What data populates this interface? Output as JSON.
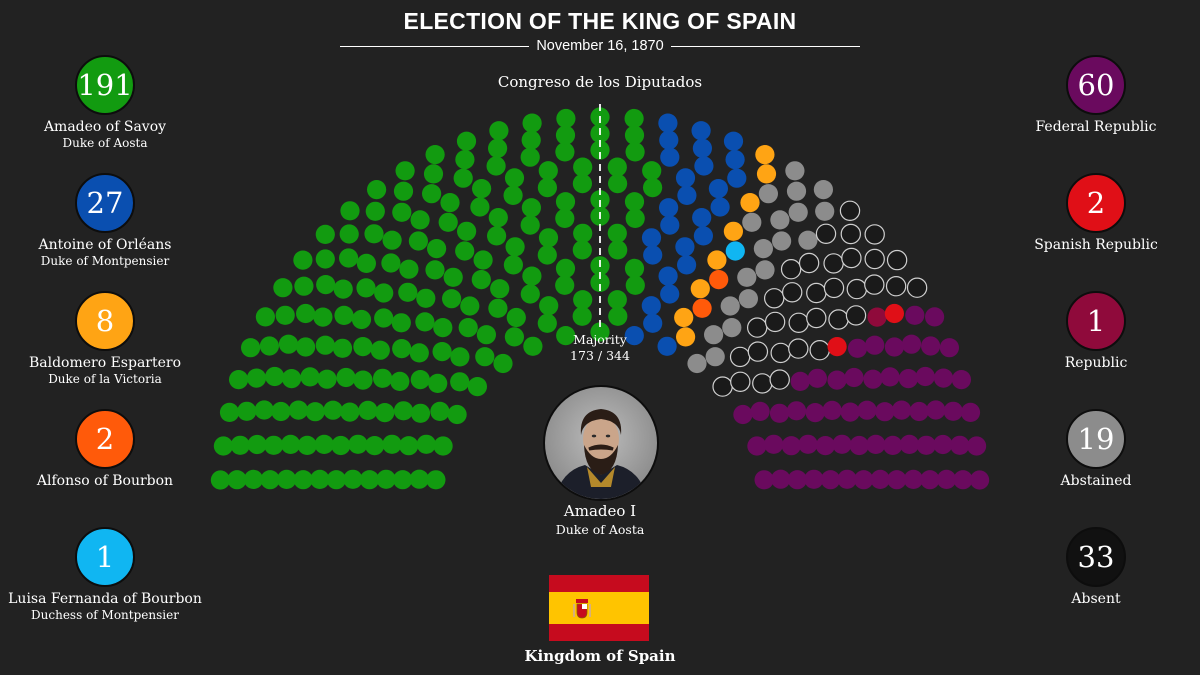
{
  "header": {
    "title": "ELECTION OF THE KING OF SPAIN",
    "date": "November 16, 1870"
  },
  "chart_data": {
    "type": "parliament",
    "title": "Congreso de los Diputados",
    "majority_label": "Majority",
    "majority_value": "173 / 344",
    "total_seats": 344,
    "rows": 14,
    "series": [
      {
        "name": "Amadeo of Savoy",
        "subtitle": "Duke of Aosta",
        "value": 191,
        "color": "#129b10"
      },
      {
        "name": "Antoine of Orléans",
        "subtitle": "Duke of Montpensier",
        "value": 27,
        "color": "#0a4fb0"
      },
      {
        "name": "Baldomero Espartero",
        "subtitle": "Duke of la Victoria",
        "value": 8,
        "color": "#ffa414"
      },
      {
        "name": "Alfonso of Bourbon",
        "subtitle": "",
        "value": 2,
        "color": "#ff5a0a"
      },
      {
        "name": "Luisa Fernanda of Bourbon",
        "subtitle": "Duchess of Montpensier",
        "value": 1,
        "color": "#10b6f2"
      },
      {
        "name": "Abstained",
        "subtitle": "",
        "value": 19,
        "color": "#8c8c8c"
      },
      {
        "name": "Absent",
        "subtitle": "",
        "value": 33,
        "color": "#1a1a1a"
      },
      {
        "name": "Republic",
        "subtitle": "",
        "value": 1,
        "color": "#8f0a3b"
      },
      {
        "name": "Spanish Republic",
        "subtitle": "",
        "value": 2,
        "color": "#e00f17"
      },
      {
        "name": "Federal Republic",
        "subtitle": "",
        "value": 60,
        "color": "#6a0a5e"
      }
    ]
  },
  "winner": {
    "name": "Amadeo I",
    "title": "Duke of Aosta"
  },
  "flag_label": "Kingdom of Spain",
  "colors": {
    "background": "#222222",
    "flag_red": "#c60b1e",
    "flag_yellow": "#ffc400"
  }
}
